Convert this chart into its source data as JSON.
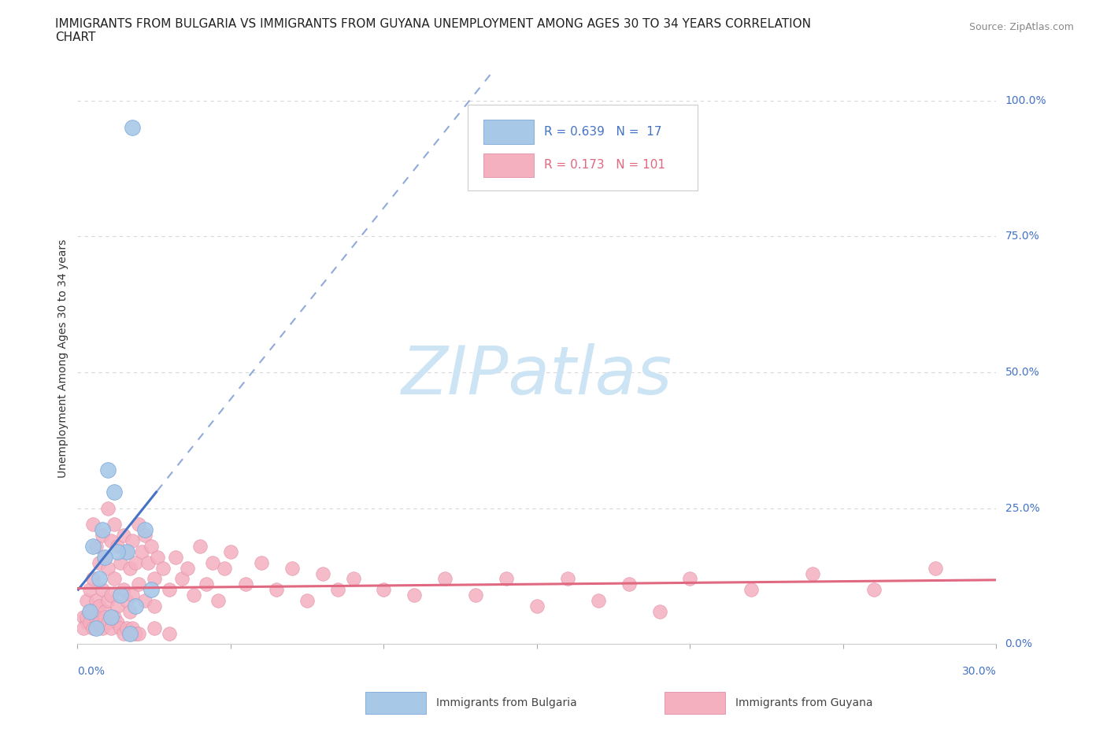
{
  "title_line1": "IMMIGRANTS FROM BULGARIA VS IMMIGRANTS FROM GUYANA UNEMPLOYMENT AMONG AGES 30 TO 34 YEARS CORRELATION",
  "title_line2": "CHART",
  "source": "Source: ZipAtlas.com",
  "ylabel": "Unemployment Among Ages 30 to 34 years",
  "xtick_label_left": "0.0%",
  "xtick_label_right": "30.0%",
  "ytick_values": [
    0,
    0.25,
    0.5,
    0.75,
    1.0
  ],
  "ytick_labels": [
    "0.0%",
    "25.0%",
    "50.0%",
    "75.0%",
    "100.0%"
  ],
  "xlim": [
    0,
    0.3
  ],
  "ylim": [
    0,
    1.05
  ],
  "bg_color": "#ffffff",
  "grid_color": "#d8d8d8",
  "watermark_text": "ZIPatlas",
  "watermark_color": "#cde4f5",
  "bulgaria_scatter_color": "#a8c8e8",
  "bulgaria_scatter_edge": "#7aa8d8",
  "bulgaria_line_color": "#4472c4",
  "guyana_scatter_color": "#f5b0c0",
  "guyana_scatter_edge": "#e090a8",
  "guyana_line_color": "#e06880",
  "bulgaria_R": 0.639,
  "bulgaria_N": 17,
  "guyana_R": 0.173,
  "guyana_N": 101,
  "legend_label_bulgaria": "Immigrants from Bulgaria",
  "legend_label_guyana": "Immigrants from Guyana",
  "title_fontsize": 11,
  "label_fontsize": 10,
  "tick_fontsize": 10,
  "legend_fontsize": 11,
  "source_fontsize": 9,
  "bulgaria_x": [
    0.018,
    0.01,
    0.012,
    0.022,
    0.008,
    0.005,
    0.016,
    0.013,
    0.009,
    0.007,
    0.024,
    0.014,
    0.019,
    0.004,
    0.011,
    0.006,
    0.017
  ],
  "bulgaria_y": [
    0.95,
    0.32,
    0.28,
    0.21,
    0.21,
    0.18,
    0.17,
    0.17,
    0.16,
    0.12,
    0.1,
    0.09,
    0.07,
    0.06,
    0.05,
    0.03,
    0.02
  ],
  "guyana_x": [
    0.002,
    0.003,
    0.003,
    0.004,
    0.004,
    0.005,
    0.005,
    0.005,
    0.006,
    0.006,
    0.007,
    0.007,
    0.008,
    0.008,
    0.009,
    0.009,
    0.01,
    0.01,
    0.01,
    0.011,
    0.011,
    0.012,
    0.012,
    0.013,
    0.013,
    0.014,
    0.015,
    0.015,
    0.016,
    0.016,
    0.017,
    0.017,
    0.018,
    0.018,
    0.019,
    0.02,
    0.02,
    0.021,
    0.022,
    0.022,
    0.023,
    0.024,
    0.025,
    0.025,
    0.026,
    0.028,
    0.03,
    0.032,
    0.034,
    0.036,
    0.038,
    0.04,
    0.042,
    0.044,
    0.046,
    0.048,
    0.05,
    0.055,
    0.06,
    0.065,
    0.07,
    0.075,
    0.08,
    0.085,
    0.09,
    0.1,
    0.11,
    0.12,
    0.13,
    0.14,
    0.15,
    0.16,
    0.17,
    0.18,
    0.19,
    0.2,
    0.22,
    0.24,
    0.26,
    0.28,
    0.002,
    0.003,
    0.004,
    0.005,
    0.006,
    0.007,
    0.008,
    0.009,
    0.01,
    0.011,
    0.012,
    0.013,
    0.014,
    0.015,
    0.016,
    0.017,
    0.018,
    0.019,
    0.02,
    0.025,
    0.03
  ],
  "guyana_y": [
    0.05,
    0.08,
    0.04,
    0.1,
    0.06,
    0.22,
    0.12,
    0.04,
    0.18,
    0.08,
    0.15,
    0.07,
    0.2,
    0.1,
    0.16,
    0.06,
    0.25,
    0.14,
    0.08,
    0.19,
    0.09,
    0.22,
    0.12,
    0.18,
    0.07,
    0.15,
    0.2,
    0.1,
    0.17,
    0.08,
    0.14,
    0.06,
    0.19,
    0.09,
    0.15,
    0.22,
    0.11,
    0.17,
    0.2,
    0.08,
    0.15,
    0.18,
    0.12,
    0.07,
    0.16,
    0.14,
    0.1,
    0.16,
    0.12,
    0.14,
    0.09,
    0.18,
    0.11,
    0.15,
    0.08,
    0.14,
    0.17,
    0.11,
    0.15,
    0.1,
    0.14,
    0.08,
    0.13,
    0.1,
    0.12,
    0.1,
    0.09,
    0.12,
    0.09,
    0.12,
    0.07,
    0.12,
    0.08,
    0.11,
    0.06,
    0.12,
    0.1,
    0.13,
    0.1,
    0.14,
    0.03,
    0.05,
    0.04,
    0.03,
    0.05,
    0.04,
    0.03,
    0.05,
    0.04,
    0.03,
    0.05,
    0.04,
    0.03,
    0.02,
    0.03,
    0.02,
    0.03,
    0.02,
    0.02,
    0.03,
    0.02
  ]
}
